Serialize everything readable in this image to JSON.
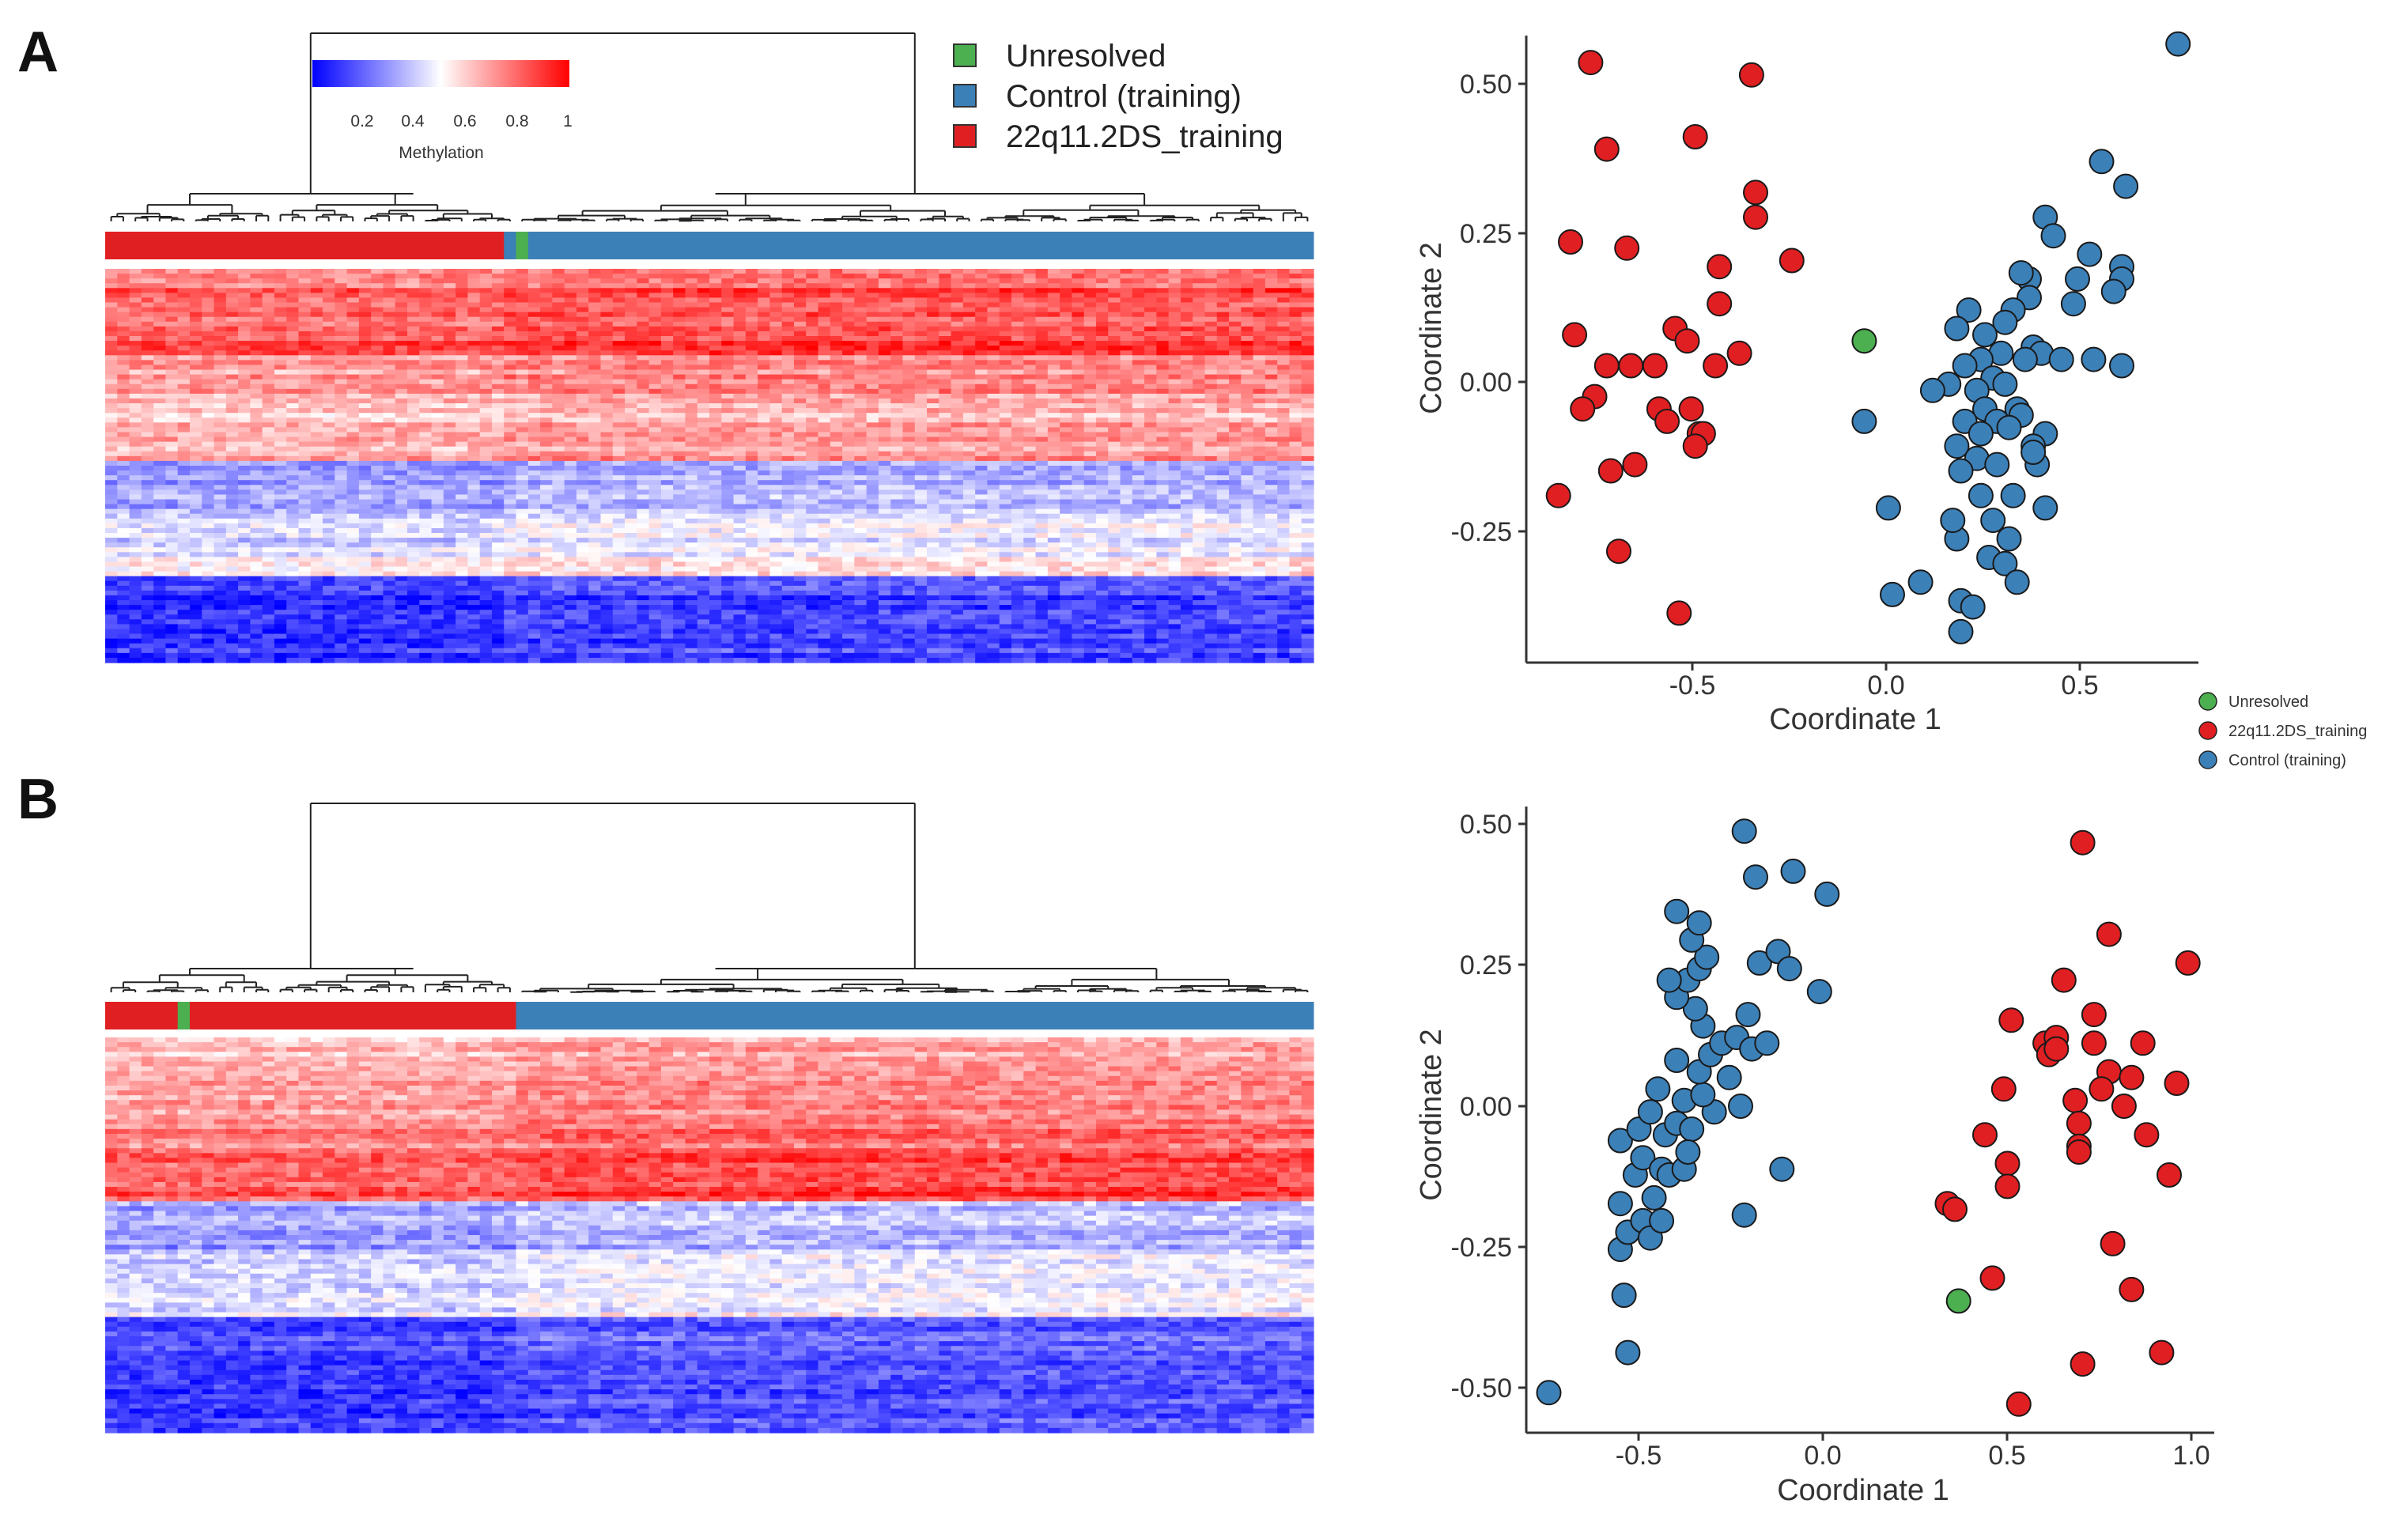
{
  "figure": {
    "panels": [
      {
        "label": "A"
      },
      {
        "label": "B"
      }
    ],
    "legend": {
      "items": [
        {
          "label": "Unresolved",
          "color": "#4caf50"
        },
        {
          "label": "Control (training)",
          "color": "#3c80b8"
        },
        {
          "label": "22q11.2DS_training",
          "color": "#e01f22"
        }
      ]
    },
    "colorbar": {
      "title": "Methylation",
      "ticks": [
        "0.2",
        "0.4",
        "0.6",
        "0.8",
        "1"
      ],
      "colors": {
        "low": "#0000ff",
        "mid": "#ffffff",
        "high": "#ff0000"
      }
    },
    "scatter_legend": {
      "items": [
        {
          "label": "Unresolved",
          "color": "#4caf50"
        },
        {
          "label": "22q11.2DS_training",
          "color": "#e01f22"
        },
        {
          "label": "Control (training)",
          "color": "#3c80b8"
        }
      ]
    }
  },
  "chart_data": [
    {
      "id": "heatmapA",
      "type": "heatmap",
      "title": "",
      "n_samples": 100,
      "group_annotation": [
        {
          "group": "22q11.2DS_training",
          "count": 33
        },
        {
          "group": "Control (training)",
          "count": 1
        },
        {
          "group": "Unresolved",
          "count": 1
        },
        {
          "group": "Control (training)",
          "count": 65
        }
      ],
      "row_band_profile": [
        {
          "rows": 4,
          "mean": 0.8
        },
        {
          "rows": 8,
          "mean": 0.85
        },
        {
          "rows": 6,
          "mean": 0.88
        },
        {
          "rows": 8,
          "mean": 0.72
        },
        {
          "rows": 8,
          "mean": 0.66
        },
        {
          "rows": 6,
          "mean": 0.7
        },
        {
          "rows": 10,
          "mean": 0.35
        },
        {
          "rows": 10,
          "mean": 0.45
        },
        {
          "rows": 4,
          "mean": 0.55
        },
        {
          "rows": 18,
          "mean": 0.15
        }
      ],
      "group_shift": {
        "left_columns": 33,
        "delta": -0.04
      }
    },
    {
      "id": "scatterA",
      "type": "scatter",
      "title": "",
      "xlabel": "Coordinate 1",
      "ylabel": "Coordinate 2",
      "xlim": [
        -0.93,
        0.78
      ],
      "ylim": [
        -0.47,
        0.55
      ],
      "xticks": [
        -0.5,
        0.0,
        0.5
      ],
      "yticks": [
        -0.25,
        0.0,
        0.25,
        0.5
      ],
      "xtick_labels": [
        "-0.5",
        "0.0",
        "0.5"
      ],
      "ytick_labels": [
        "-0.25",
        "0.00",
        "0.25",
        "0.50"
      ],
      "series": [
        {
          "name": "22q11.2DS_training",
          "color": "#e01f22",
          "points": [
            [
              -0.77,
              0.5
            ],
            [
              -0.37,
              0.48
            ],
            [
              -0.73,
              0.36
            ],
            [
              -0.51,
              0.38
            ],
            [
              -0.36,
              0.29
            ],
            [
              -0.36,
              0.25
            ],
            [
              -0.82,
              0.21
            ],
            [
              -0.68,
              0.2
            ],
            [
              -0.27,
              0.18
            ],
            [
              -0.45,
              0.17
            ],
            [
              -0.45,
              0.11
            ],
            [
              -0.81,
              0.06
            ],
            [
              -0.56,
              0.07
            ],
            [
              -0.53,
              0.05
            ],
            [
              -0.4,
              0.03
            ],
            [
              -0.73,
              0.01
            ],
            [
              -0.46,
              0.01
            ],
            [
              -0.67,
              0.01
            ],
            [
              -0.61,
              0.01
            ],
            [
              -0.76,
              -0.04
            ],
            [
              -0.79,
              -0.06
            ],
            [
              -0.6,
              -0.06
            ],
            [
              -0.52,
              -0.06
            ],
            [
              -0.58,
              -0.08
            ],
            [
              -0.5,
              -0.1
            ],
            [
              -0.49,
              -0.1
            ],
            [
              -0.51,
              -0.12
            ],
            [
              -0.66,
              -0.15
            ],
            [
              -0.72,
              -0.16
            ],
            [
              -0.85,
              -0.2
            ],
            [
              -0.7,
              -0.29
            ],
            [
              -0.55,
              -0.39
            ]
          ]
        },
        {
          "name": "Control (training)",
          "color": "#3c80b8",
          "points": [
            [
              0.69,
              0.53
            ],
            [
              0.5,
              0.34
            ],
            [
              0.56,
              0.3
            ],
            [
              0.36,
              0.25
            ],
            [
              0.38,
              0.22
            ],
            [
              0.32,
              0.15
            ],
            [
              0.3,
              0.16
            ],
            [
              0.47,
              0.19
            ],
            [
              0.55,
              0.17
            ],
            [
              0.55,
              0.15
            ],
            [
              0.44,
              0.15
            ],
            [
              0.32,
              0.12
            ],
            [
              0.28,
              0.1
            ],
            [
              0.43,
              0.11
            ],
            [
              0.53,
              0.13
            ],
            [
              0.17,
              0.1
            ],
            [
              0.14,
              0.07
            ],
            [
              0.26,
              0.08
            ],
            [
              0.21,
              0.06
            ],
            [
              0.33,
              0.04
            ],
            [
              0.25,
              0.03
            ],
            [
              0.2,
              0.02
            ],
            [
              0.35,
              0.03
            ],
            [
              0.31,
              0.02
            ],
            [
              0.4,
              0.02
            ],
            [
              0.48,
              0.02
            ],
            [
              0.55,
              0.01
            ],
            [
              0.16,
              0.01
            ],
            [
              0.23,
              -0.01
            ],
            [
              0.26,
              -0.02
            ],
            [
              0.12,
              -0.02
            ],
            [
              0.08,
              -0.03
            ],
            [
              0.19,
              -0.03
            ],
            [
              0.29,
              -0.06
            ],
            [
              0.3,
              -0.07
            ],
            [
              0.21,
              -0.06
            ],
            [
              0.24,
              -0.08
            ],
            [
              0.27,
              -0.09
            ],
            [
              0.36,
              -0.1
            ],
            [
              0.16,
              -0.08
            ],
            [
              0.2,
              -0.1
            ],
            [
              0.14,
              -0.12
            ],
            [
              0.33,
              -0.12
            ],
            [
              0.19,
              -0.14
            ],
            [
              0.24,
              -0.15
            ],
            [
              0.15,
              -0.16
            ],
            [
              0.2,
              -0.2
            ],
            [
              0.28,
              -0.2
            ],
            [
              0.34,
              -0.15
            ],
            [
              0.36,
              -0.22
            ],
            [
              0.33,
              -0.13
            ],
            [
              0.23,
              -0.24
            ],
            [
              0.14,
              -0.27
            ],
            [
              0.27,
              -0.27
            ],
            [
              0.22,
              -0.3
            ],
            [
              0.26,
              -0.31
            ],
            [
              0.15,
              -0.37
            ],
            [
              0.18,
              -0.38
            ],
            [
              -0.02,
              -0.36
            ],
            [
              0.05,
              -0.34
            ],
            [
              0.15,
              -0.42
            ],
            [
              -0.09,
              -0.08
            ],
            [
              0.13,
              -0.24
            ],
            [
              -0.03,
              -0.22
            ],
            [
              0.29,
              -0.34
            ]
          ]
        },
        {
          "name": "Unresolved",
          "color": "#4caf50",
          "points": [
            [
              -0.09,
              0.05
            ]
          ]
        }
      ]
    },
    {
      "id": "heatmapB",
      "type": "heatmap",
      "title": "",
      "n_samples": 100,
      "group_annotation": [
        {
          "group": "22q11.2DS_training",
          "count": 6
        },
        {
          "group": "Unresolved",
          "count": 1
        },
        {
          "group": "22q11.2DS_training",
          "count": 27
        },
        {
          "group": "Control (training)",
          "count": 66
        }
      ],
      "row_band_profile": [
        {
          "rows": 6,
          "mean": 0.66
        },
        {
          "rows": 10,
          "mean": 0.72
        },
        {
          "rows": 8,
          "mean": 0.78
        },
        {
          "rows": 10,
          "mean": 0.88
        },
        {
          "rows": 10,
          "mean": 0.36
        },
        {
          "rows": 14,
          "mean": 0.48
        },
        {
          "rows": 10,
          "mean": 0.2
        },
        {
          "rows": 14,
          "mean": 0.16
        }
      ],
      "group_shift": {
        "left_columns": 34,
        "delta": -0.05
      }
    },
    {
      "id": "scatterB",
      "type": "scatter",
      "title": "",
      "xlabel": "Coordinate 1",
      "ylabel": "Coordinate 2",
      "xlim": [
        -0.8,
        1.03
      ],
      "ylim": [
        -0.58,
        0.52
      ],
      "xticks": [
        -0.5,
        0.0,
        0.5,
        1.0
      ],
      "yticks": [
        -0.5,
        -0.25,
        0.0,
        0.25,
        0.5
      ],
      "xtick_labels": [
        "-0.5",
        "0.0",
        "0.5",
        "1.0"
      ],
      "ytick_labels": [
        "-0.50",
        "-0.25",
        "0.00",
        "0.25",
        "0.50"
      ],
      "series": [
        {
          "name": "Control (training)",
          "color": "#3c80b8",
          "points": [
            [
              -0.74,
              -0.51
            ],
            [
              -0.53,
              -0.44
            ],
            [
              -0.54,
              -0.34
            ],
            [
              -0.55,
              -0.26
            ],
            [
              -0.53,
              -0.23
            ],
            [
              -0.49,
              -0.21
            ],
            [
              -0.47,
              -0.24
            ],
            [
              -0.55,
              -0.18
            ],
            [
              -0.51,
              -0.13
            ],
            [
              -0.46,
              -0.17
            ],
            [
              -0.49,
              -0.1
            ],
            [
              -0.44,
              -0.12
            ],
            [
              -0.42,
              -0.13
            ],
            [
              -0.38,
              -0.12
            ],
            [
              -0.43,
              -0.06
            ],
            [
              -0.55,
              -0.07
            ],
            [
              -0.5,
              -0.05
            ],
            [
              -0.47,
              -0.02
            ],
            [
              -0.4,
              -0.04
            ],
            [
              -0.36,
              -0.05
            ],
            [
              -0.3,
              -0.02
            ],
            [
              -0.38,
              0.0
            ],
            [
              -0.33,
              0.01
            ],
            [
              -0.26,
              0.04
            ],
            [
              -0.34,
              0.05
            ],
            [
              -0.45,
              0.02
            ],
            [
              -0.4,
              0.07
            ],
            [
              -0.31,
              0.08
            ],
            [
              -0.28,
              0.1
            ],
            [
              -0.24,
              0.11
            ],
            [
              -0.2,
              0.09
            ],
            [
              -0.16,
              0.1
            ],
            [
              -0.21,
              0.15
            ],
            [
              -0.33,
              0.13
            ],
            [
              -0.35,
              0.16
            ],
            [
              -0.4,
              0.18
            ],
            [
              -0.37,
              0.21
            ],
            [
              -0.42,
              0.21
            ],
            [
              -0.34,
              0.23
            ],
            [
              -0.32,
              0.25
            ],
            [
              -0.36,
              0.28
            ],
            [
              -0.18,
              0.24
            ],
            [
              -0.13,
              0.26
            ],
            [
              -0.1,
              0.23
            ],
            [
              -0.02,
              0.19
            ],
            [
              -0.34,
              0.31
            ],
            [
              -0.4,
              0.33
            ],
            [
              -0.19,
              0.39
            ],
            [
              -0.09,
              0.4
            ],
            [
              0.0,
              0.36
            ],
            [
              -0.22,
              0.47
            ],
            [
              -0.12,
              -0.12
            ],
            [
              -0.22,
              -0.2
            ],
            [
              -0.23,
              -0.01
            ],
            [
              -0.44,
              -0.21
            ],
            [
              -0.37,
              -0.09
            ]
          ]
        },
        {
          "name": "22q11.2DS_training",
          "color": "#e01f22",
          "points": [
            [
              0.68,
              0.45
            ],
            [
              0.75,
              0.29
            ],
            [
              0.96,
              0.24
            ],
            [
              0.63,
              0.21
            ],
            [
              0.49,
              0.14
            ],
            [
              0.71,
              0.15
            ],
            [
              0.58,
              0.1
            ],
            [
              0.61,
              0.11
            ],
            [
              0.59,
              0.08
            ],
            [
              0.61,
              0.09
            ],
            [
              0.71,
              0.1
            ],
            [
              0.84,
              0.1
            ],
            [
              0.75,
              0.05
            ],
            [
              0.81,
              0.04
            ],
            [
              0.93,
              0.03
            ],
            [
              0.47,
              0.02
            ],
            [
              0.66,
              0.0
            ],
            [
              0.73,
              0.02
            ],
            [
              0.79,
              -0.01
            ],
            [
              0.67,
              -0.04
            ],
            [
              0.42,
              -0.06
            ],
            [
              0.85,
              -0.06
            ],
            [
              0.67,
              -0.08
            ],
            [
              0.48,
              -0.11
            ],
            [
              0.67,
              -0.09
            ],
            [
              0.91,
              -0.13
            ],
            [
              0.48,
              -0.15
            ],
            [
              0.32,
              -0.18
            ],
            [
              0.34,
              -0.19
            ],
            [
              0.76,
              -0.25
            ],
            [
              0.44,
              -0.31
            ],
            [
              0.81,
              -0.33
            ],
            [
              0.89,
              -0.44
            ],
            [
              0.68,
              -0.46
            ],
            [
              0.51,
              -0.53
            ]
          ]
        },
        {
          "name": "Unresolved",
          "color": "#4caf50",
          "points": [
            [
              0.35,
              -0.35
            ]
          ]
        }
      ]
    }
  ]
}
